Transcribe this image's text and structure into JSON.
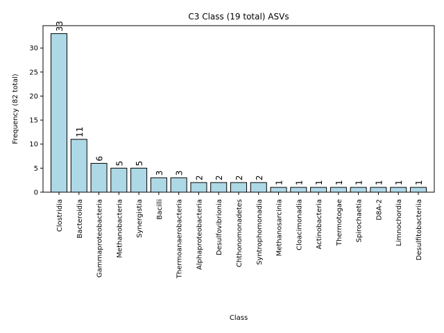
{
  "chart_data": {
    "type": "bar",
    "title": "C3 Class (19 total) ASVs",
    "xlabel": "Class",
    "ylabel": "Frequency (82 total)",
    "categories": [
      "Clostridia",
      "Bacteroidia",
      "Gammaproteobacteria",
      "Methanobacteria",
      "Synergistia",
      "Bacilli",
      "Thermoanaerobacteria",
      "Alphaproteobacteria",
      "Desulfovibrionia",
      "Chthonomonadetes",
      "Syntrophomonadia",
      "Methanosarcinia",
      "Cloacimonadia",
      "Actinobacteria",
      "Thermotogae",
      "Spirochaetia",
      "D8A-2",
      "Limnochordia",
      "Desulfitobacteriia"
    ],
    "values": [
      33,
      11,
      6,
      5,
      5,
      3,
      3,
      2,
      2,
      2,
      2,
      1,
      1,
      1,
      1,
      1,
      1,
      1,
      1
    ],
    "data_labels": [
      "33",
      "11",
      "6",
      "5",
      "5",
      "3",
      "3",
      "2",
      "2",
      "2",
      "2",
      "1",
      "1",
      "1",
      "1",
      "1",
      "1",
      "1",
      "1"
    ],
    "yticks": [
      "0",
      "5",
      "10",
      "15",
      "20",
      "25",
      "30"
    ],
    "ylim": [
      0,
      34.65
    ],
    "bar_color": "#add8e6",
    "edge_color": "#000000",
    "grid": false,
    "legend": "none"
  }
}
